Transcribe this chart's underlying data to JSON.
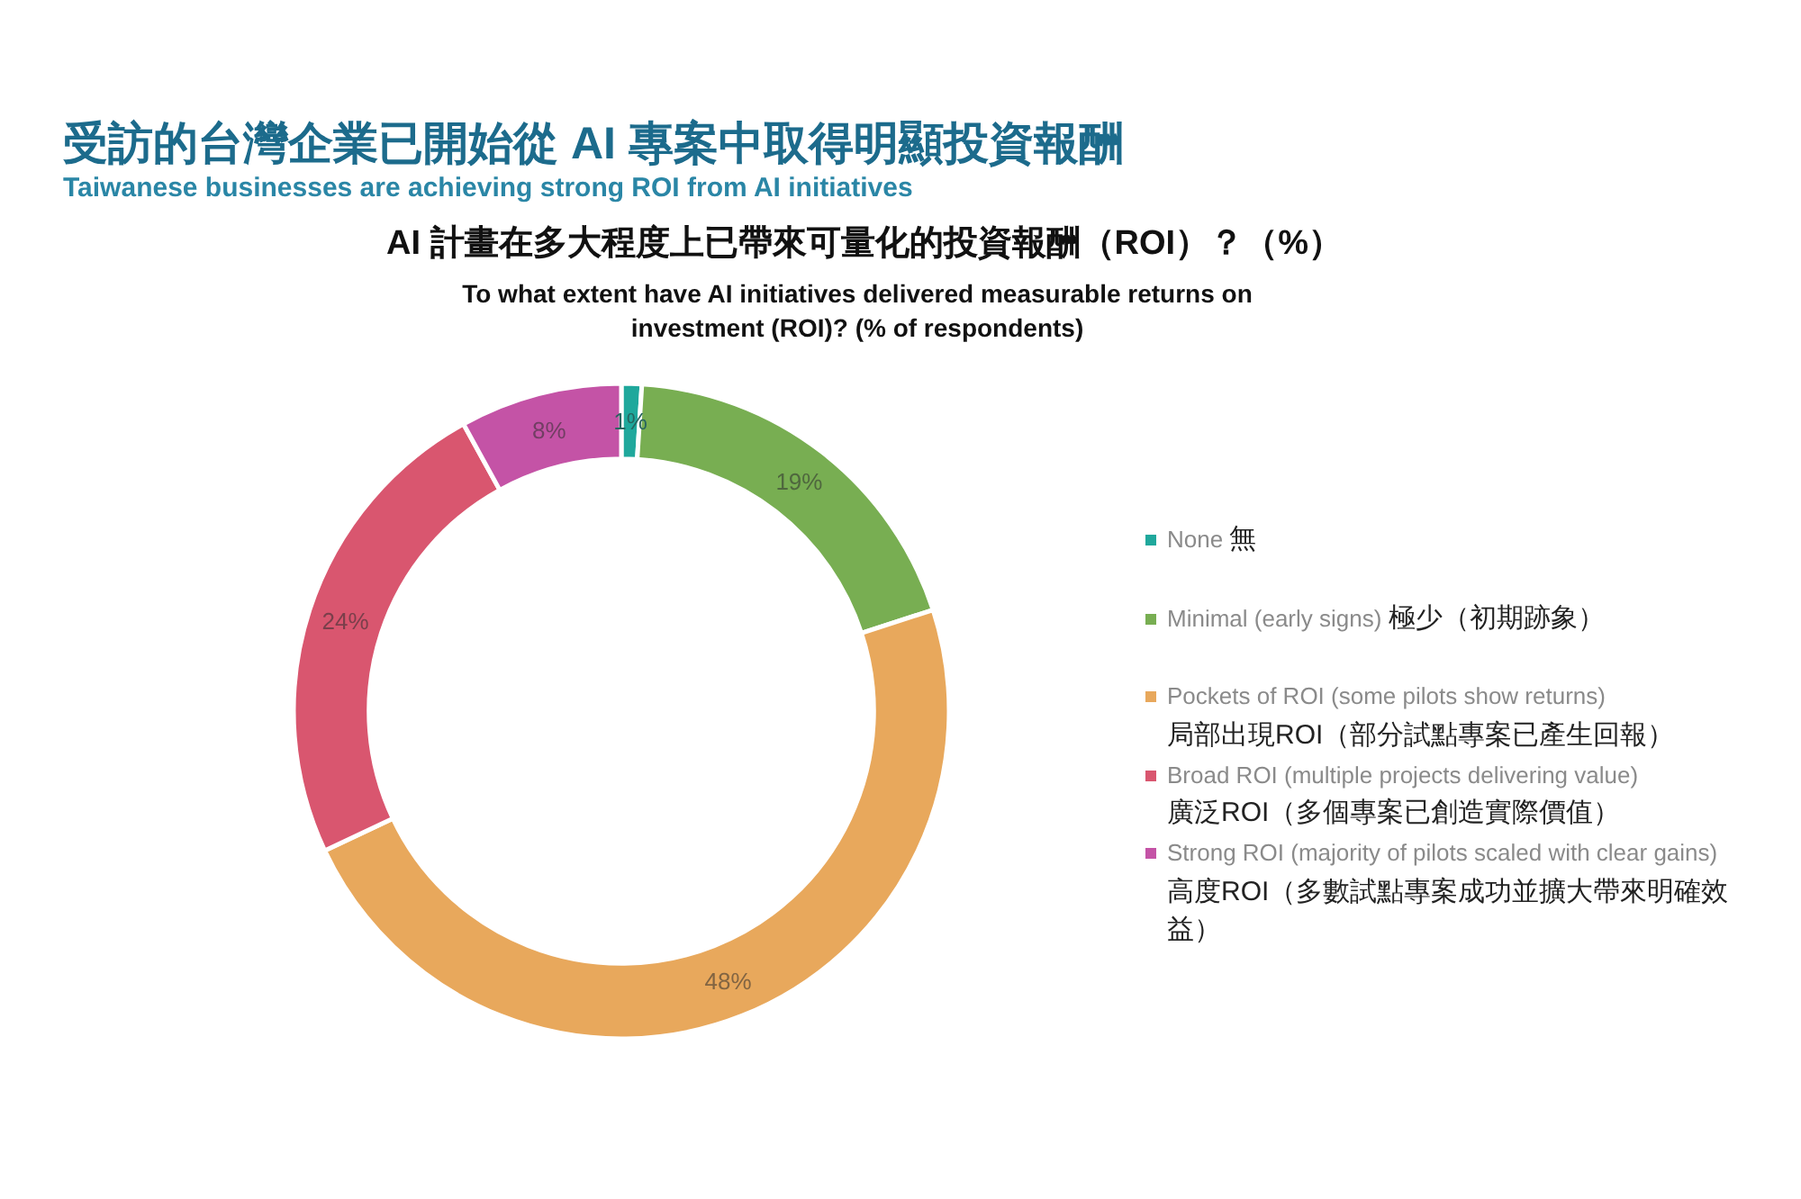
{
  "chart_data": {
    "type": "donut",
    "title": "受訪的台灣企業已開始從 AI 專案中取得明顯投資報酬",
    "subtitle": "Taiwanese businesses are achieving strong ROI from AI initiatives",
    "annotations": [
      "AI 計畫在多大程度上已帶來可量化的投資報酬（ROI）？（%）",
      "To what extent have AI initiatives delivered measurable returns on investment (ROI)? (% of respondents)"
    ],
    "categories": [
      "None 無",
      "Minimal (early signs) 極少（初期跡象）",
      "Pockets of ROI (some pilots show returns) 局部出現ROI（部分試點專案已產生回報）",
      "Broad ROI (multiple projects delivering value) 廣泛ROI（多個專案已創造實際價值）",
      "Strong ROI (majority of pilots scaled with clear gains) 高度ROI（多數試點專案成功並擴大帶來明確效益）"
    ],
    "values": [
      1,
      19,
      48,
      24,
      8
    ],
    "colors": [
      "#1fa89c",
      "#78ae52",
      "#e8a85c",
      "#d9566f",
      "#c453a6"
    ],
    "value_labels": [
      "1%",
      "19%",
      "48%",
      "24%",
      "8%"
    ],
    "legend": "right"
  }
}
